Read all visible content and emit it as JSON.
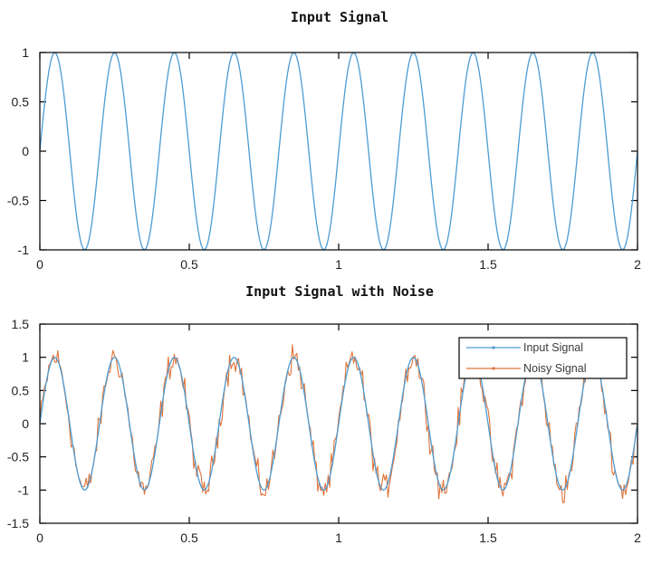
{
  "chart_data": [
    {
      "type": "line",
      "title": "Input Signal",
      "xlabel": "",
      "ylabel": "",
      "xlim": [
        0,
        2
      ],
      "ylim": [
        -1,
        1
      ],
      "x_ticks": [
        0,
        0.5,
        1,
        1.5,
        2
      ],
      "y_ticks": [
        -1,
        -0.5,
        0,
        0.5,
        1
      ],
      "x_tick_labels": [
        "0",
        "0.5",
        "1",
        "1.5",
        "2"
      ],
      "y_tick_labels": [
        "-1",
        "-0.5",
        "0",
        "0.5",
        "1"
      ],
      "grid": false,
      "series": [
        {
          "color": "#4d9cd3",
          "function": "sin(2*pi*5*t)",
          "sample_rate": 200
        }
      ]
    },
    {
      "type": "line",
      "title": "Input Signal with Noise",
      "xlabel": "",
      "ylabel": "",
      "xlim": [
        0,
        2
      ],
      "ylim": [
        -1.5,
        1.5
      ],
      "x_ticks": [
        0,
        0.5,
        1,
        1.5,
        2
      ],
      "y_ticks": [
        -1.5,
        -1,
        -0.5,
        0,
        0.5,
        1,
        1.5
      ],
      "x_tick_labels": [
        "0",
        "0.5",
        "1",
        "1.5",
        "2"
      ],
      "y_tick_labels": [
        "-1.5",
        "-1",
        "-0.5",
        "0",
        "0.5",
        "1",
        "1.5"
      ],
      "grid": false,
      "legend_position": "top-right",
      "series": [
        {
          "name": "Input Signal",
          "color": "#4d9cd3",
          "function": "sin(2*pi*5*t)",
          "sample_rate": 200
        },
        {
          "name": "Noisy Signal",
          "color": "#e0733a",
          "function": "sin(2*pi*5*t) + noise",
          "noise_amplitude": 0.2,
          "sample_rate": 200
        }
      ]
    }
  ]
}
